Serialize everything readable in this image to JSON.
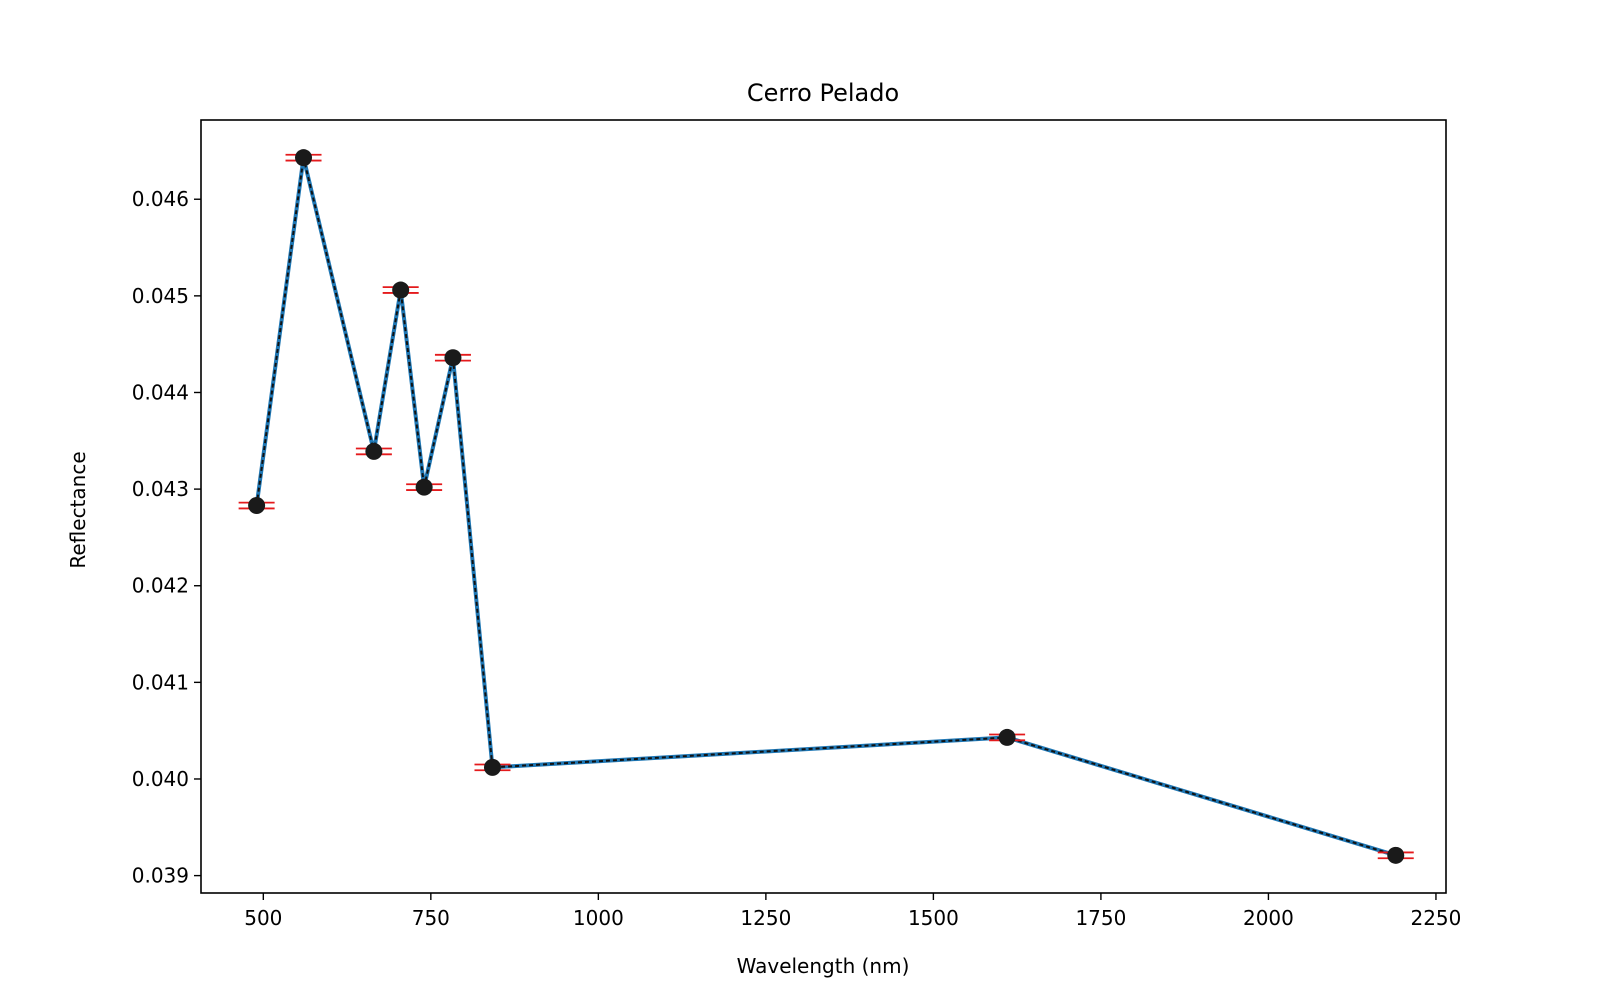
{
  "chart_data": {
    "type": "line",
    "title": "Cerro Pelado",
    "xlabel": "Wavelength (nm)",
    "ylabel": "Reflectance",
    "xlim": [
      407,
      2265
    ],
    "ylim": [
      0.03882,
      0.04682
    ],
    "xticks": [
      {
        "value": 500,
        "label": "500"
      },
      {
        "value": 750,
        "label": "750"
      },
      {
        "value": 1000,
        "label": "1000"
      },
      {
        "value": 1250,
        "label": "1250"
      },
      {
        "value": 1500,
        "label": "1500"
      },
      {
        "value": 1750,
        "label": "1750"
      },
      {
        "value": 2000,
        "label": "2000"
      },
      {
        "value": 2250,
        "label": "2250"
      }
    ],
    "yticks": [
      {
        "value": 0.039,
        "label": "0.039"
      },
      {
        "value": 0.04,
        "label": "0.040"
      },
      {
        "value": 0.041,
        "label": "0.041"
      },
      {
        "value": 0.042,
        "label": "0.042"
      },
      {
        "value": 0.043,
        "label": "0.043"
      },
      {
        "value": 0.044,
        "label": "0.044"
      },
      {
        "value": 0.045,
        "label": "0.045"
      },
      {
        "value": 0.046,
        "label": "0.046"
      }
    ],
    "grid": false,
    "series": [
      {
        "x": [
          490,
          560,
          665,
          705,
          740,
          783,
          842,
          1610,
          2190
        ],
        "y": [
          0.04283,
          0.04643,
          0.04339,
          0.04506,
          0.04302,
          0.04436,
          0.04012,
          0.04043,
          0.03921
        ],
        "error": [
          3e-05,
          3e-05,
          3e-05,
          3e-05,
          3e-05,
          3e-05,
          3e-05,
          3e-05,
          3e-05
        ],
        "line_color": "#1f77b4",
        "marker_color": "#1a1a1a",
        "error_color": "#e41a1c"
      }
    ]
  }
}
